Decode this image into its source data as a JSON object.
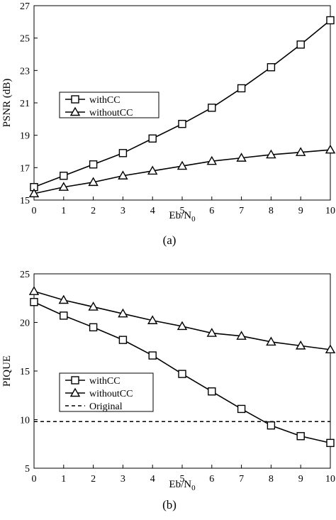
{
  "chart_data": [
    {
      "type": "line",
      "caption": "(a)",
      "xlabel_main": "Eb/N",
      "xlabel_sub": "0",
      "ylabel": "PSNR (dB)",
      "x": [
        0,
        1,
        2,
        3,
        4,
        5,
        6,
        7,
        8,
        9,
        10
      ],
      "xlim": [
        0,
        10
      ],
      "ylim": [
        15,
        27
      ],
      "yticks": [
        15,
        17,
        19,
        21,
        23,
        25,
        27
      ],
      "grid": false,
      "legend_position": "center-left",
      "series": [
        {
          "name": "withCC",
          "marker": "square",
          "values": [
            15.8,
            16.5,
            17.2,
            17.9,
            18.8,
            19.7,
            20.7,
            21.9,
            23.2,
            24.6,
            26.1
          ]
        },
        {
          "name": "withoutCC",
          "marker": "triangle",
          "values": [
            15.4,
            15.8,
            16.1,
            16.5,
            16.8,
            17.1,
            17.4,
            17.6,
            17.8,
            17.95,
            18.1
          ]
        }
      ]
    },
    {
      "type": "line",
      "caption": "(b)",
      "xlabel_main": "Eb/N",
      "xlabel_sub": "0",
      "ylabel": "PIQUE",
      "x": [
        0,
        1,
        2,
        3,
        4,
        5,
        6,
        7,
        8,
        9,
        10
      ],
      "xlim": [
        0,
        10
      ],
      "ylim": [
        5,
        25
      ],
      "yticks": [
        5,
        10,
        15,
        20,
        25
      ],
      "grid": false,
      "legend_position": "bottom-left",
      "series": [
        {
          "name": "withCC",
          "marker": "square",
          "values": [
            22.1,
            20.7,
            19.5,
            18.2,
            16.6,
            14.7,
            12.9,
            11.1,
            9.4,
            8.3,
            7.6
          ]
        },
        {
          "name": "withoutCC",
          "marker": "triangle",
          "values": [
            23.2,
            22.3,
            21.6,
            20.9,
            20.2,
            19.6,
            18.9,
            18.6,
            18.0,
            17.6,
            17.2
          ]
        },
        {
          "name": "Original",
          "marker": "none",
          "dashed": true,
          "values": [
            9.8,
            9.8,
            9.8,
            9.8,
            9.8,
            9.8,
            9.8,
            9.8,
            9.8,
            9.8,
            9.8
          ]
        }
      ]
    }
  ]
}
